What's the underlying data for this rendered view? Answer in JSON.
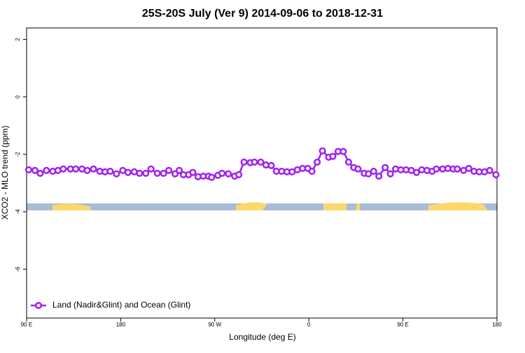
{
  "chart_data": {
    "type": "line",
    "title": "25S-20S July (Ver 9)   2014-09-06 to 2018-12-31",
    "xlabel": "Longitude (deg E)",
    "ylabel": "XCO2 - MLO trend (ppm)",
    "xlim": [
      90,
      540
    ],
    "ylim": [
      -7.7,
      2.4
    ],
    "xticks": [
      {
        "value": 90,
        "label": "90 E"
      },
      180,
      {
        "value": 270,
        "label": "90 W"
      },
      {
        "value": 360,
        "label": "0"
      },
      {
        "value": 450,
        "label": "90 E"
      },
      {
        "value": 540,
        "label": "180"
      }
    ],
    "yticks": [
      -6,
      -4,
      -2,
      0,
      2
    ],
    "legend": "bottom-left",
    "series": [
      {
        "name": "Land (Nadir&Glint) and Ocean (Glint)",
        "color": "#a020f0",
        "x": [
          92,
          98,
          103,
          109,
          115,
          120,
          125,
          132,
          137,
          143,
          148,
          154,
          160,
          165,
          170,
          176,
          182,
          187,
          193,
          198,
          204,
          209,
          215,
          221,
          226,
          232,
          236,
          240,
          245,
          249,
          254,
          259,
          264,
          267,
          273,
          277,
          283,
          289,
          293,
          298,
          304,
          308,
          314,
          319,
          324,
          329,
          334,
          339,
          344,
          349,
          354,
          359,
          363,
          368,
          373,
          379,
          383,
          388,
          393,
          398,
          403,
          407,
          413,
          417,
          422,
          427,
          433,
          438,
          443,
          448,
          453,
          458,
          463,
          468,
          473,
          478,
          482,
          488,
          493,
          498,
          502,
          508,
          513,
          518,
          523,
          528,
          533,
          539
        ],
        "values": [
          -2.54,
          -2.56,
          -2.66,
          -2.56,
          -2.59,
          -2.56,
          -2.51,
          -2.51,
          -2.51,
          -2.51,
          -2.56,
          -2.51,
          -2.59,
          -2.61,
          -2.59,
          -2.68,
          -2.56,
          -2.63,
          -2.61,
          -2.66,
          -2.66,
          -2.51,
          -2.66,
          -2.66,
          -2.56,
          -2.68,
          -2.56,
          -2.71,
          -2.71,
          -2.63,
          -2.78,
          -2.76,
          -2.76,
          -2.8,
          -2.73,
          -2.66,
          -2.68,
          -2.76,
          -2.71,
          -2.27,
          -2.29,
          -2.27,
          -2.27,
          -2.37,
          -2.39,
          -2.59,
          -2.59,
          -2.61,
          -2.61,
          -2.54,
          -2.49,
          -2.49,
          -2.59,
          -2.27,
          -1.88,
          -2.1,
          -2.07,
          -1.9,
          -1.9,
          -2.27,
          -2.46,
          -2.51,
          -2.66,
          -2.68,
          -2.59,
          -2.76,
          -2.46,
          -2.68,
          -2.51,
          -2.54,
          -2.54,
          -2.56,
          -2.63,
          -2.54,
          -2.56,
          -2.59,
          -2.51,
          -2.51,
          -2.49,
          -2.51,
          -2.51,
          -2.56,
          -2.49,
          -2.59,
          -2.61,
          -2.61,
          -2.56,
          -2.71
        ]
      }
    ]
  }
}
